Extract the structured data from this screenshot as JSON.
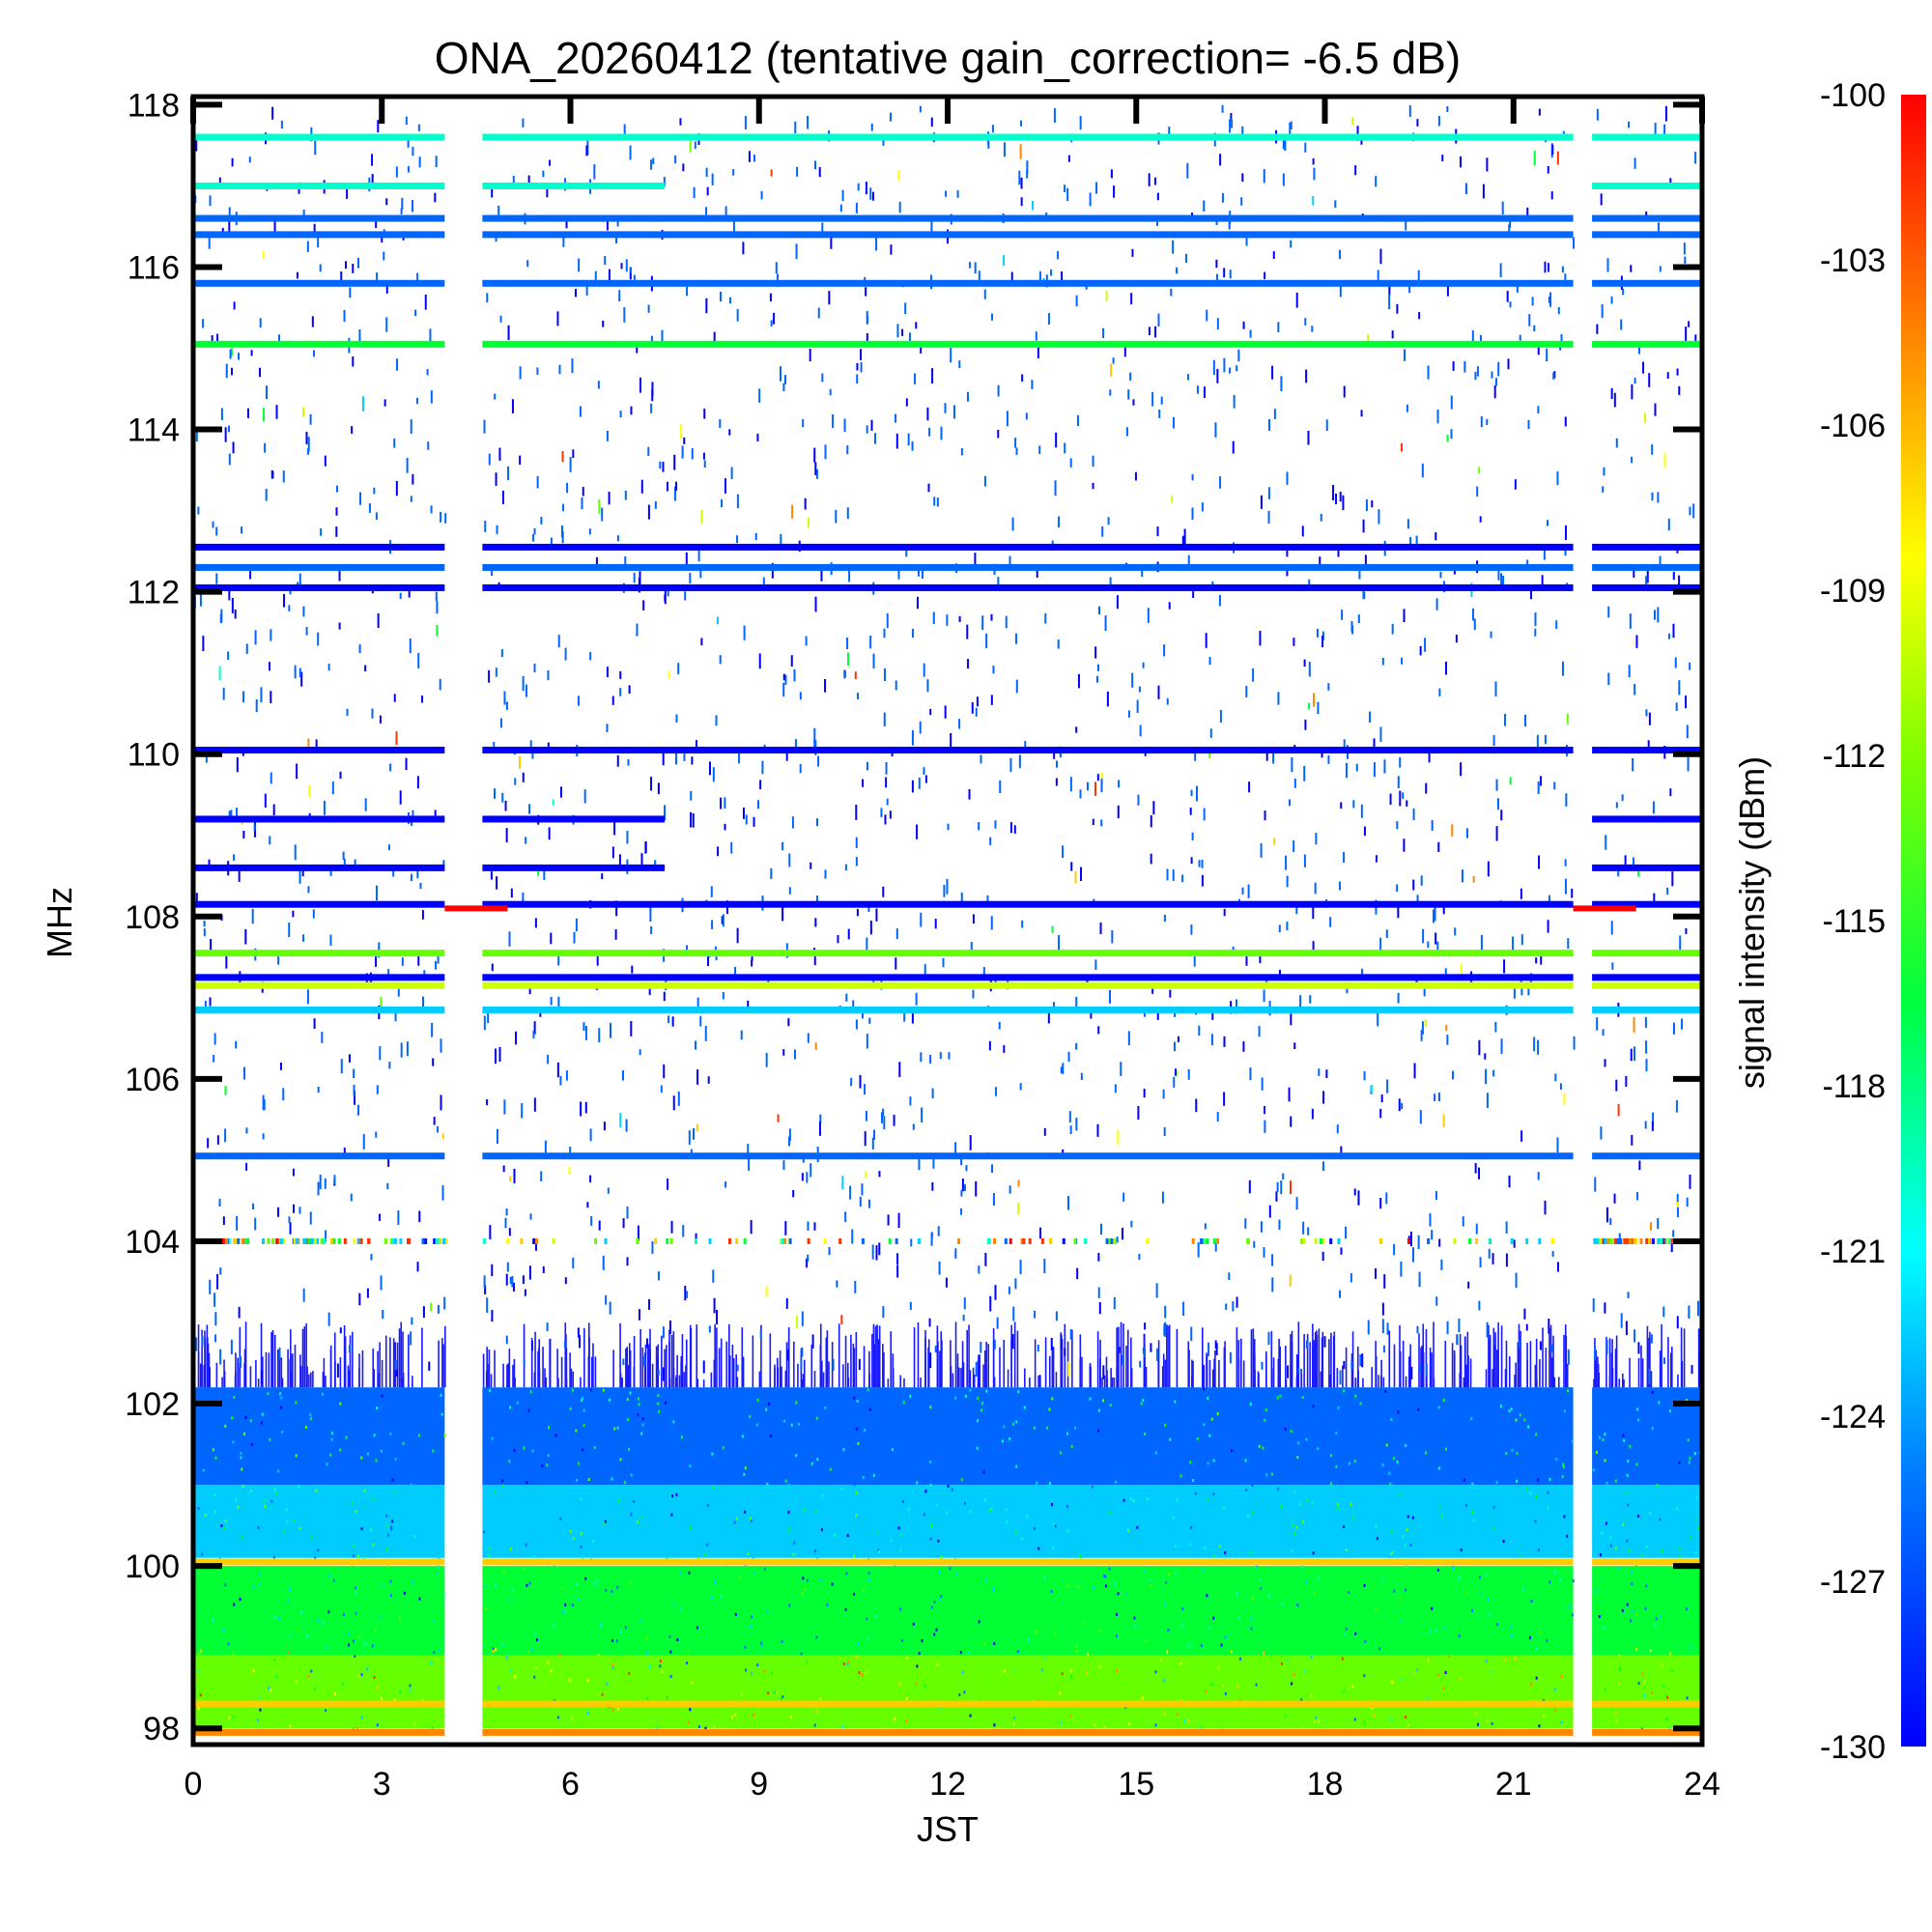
{
  "chart_data": {
    "type": "heatmap",
    "title": "ONA_20260412 (tentative gain_correction= -6.5 dB)",
    "xlabel": "JST",
    "ylabel": "MHz",
    "colorbar_label": "signal intensity (dBm)",
    "xlim": [
      0,
      24
    ],
    "ylim": [
      97.8,
      118.1
    ],
    "xticks": [
      "0",
      "3",
      "6",
      "9",
      "12",
      "15",
      "18",
      "21",
      "24"
    ],
    "yticks": [
      "98",
      "100",
      "102",
      "104",
      "106",
      "108",
      "110",
      "112",
      "114",
      "116",
      "118"
    ],
    "colorbar_range": [
      -130,
      -100
    ],
    "colorbar_ticks": [
      "-100",
      "-103",
      "-106",
      "-109",
      "-112",
      "-115",
      "-118",
      "-121",
      "-124",
      "-127",
      "-130"
    ],
    "colormap": [
      "#0000ff",
      "#0066ff",
      "#00ccff",
      "#00ffcc",
      "#00ff33",
      "#66ff00",
      "#ccff00",
      "#ffff00",
      "#ffcc00",
      "#ff8800",
      "#ff3300",
      "#ff0000"
    ],
    "data_gaps_hours": [
      [
        4.0,
        4.6
      ],
      [
        21.95,
        22.25
      ]
    ],
    "marker_108_hours": [
      [
        4.0,
        5.0
      ],
      [
        21.95,
        22.95
      ]
    ],
    "bands": [
      {
        "freq": 117.6,
        "intensity": -123,
        "coverage": "full"
      },
      {
        "freq": 117.0,
        "intensity": -122,
        "coverage": "partial"
      },
      {
        "freq": 116.6,
        "intensity": -128,
        "coverage": "full"
      },
      {
        "freq": 116.4,
        "intensity": -128,
        "coverage": "full"
      },
      {
        "freq": 115.8,
        "intensity": -128,
        "coverage": "full"
      },
      {
        "freq": 115.05,
        "intensity": -119,
        "coverage": "full"
      },
      {
        "freq": 112.55,
        "intensity": -129,
        "coverage": "full"
      },
      {
        "freq": 112.3,
        "intensity": -128,
        "coverage": "full"
      },
      {
        "freq": 112.05,
        "intensity": -129,
        "coverage": "full"
      },
      {
        "freq": 110.05,
        "intensity": -129,
        "coverage": "full"
      },
      {
        "freq": 109.2,
        "intensity": -129,
        "coverage": "partial"
      },
      {
        "freq": 108.6,
        "intensity": -129,
        "coverage": "partial"
      },
      {
        "freq": 108.15,
        "intensity": -129,
        "coverage": "full"
      },
      {
        "freq": 107.55,
        "intensity": -117,
        "coverage": "full"
      },
      {
        "freq": 107.25,
        "intensity": -129,
        "coverage": "full"
      },
      {
        "freq": 107.15,
        "intensity": -115,
        "coverage": "full"
      },
      {
        "freq": 106.85,
        "intensity": -124,
        "coverage": "full"
      },
      {
        "freq": 105.05,
        "intensity": -127,
        "coverage": "full"
      },
      {
        "freq": 104.0,
        "intensity": -110,
        "coverage": "sparse"
      },
      {
        "freq": 100.05,
        "intensity": -108,
        "coverage": "full"
      },
      {
        "freq": 98.3,
        "intensity": -108,
        "coverage": "full"
      },
      {
        "freq": 97.95,
        "intensity": -105,
        "coverage": "full"
      }
    ],
    "noise_floor": [
      {
        "from": 101.0,
        "to": 102.2,
        "intensity": -128
      },
      {
        "from": 100.1,
        "to": 101.0,
        "intensity": -125
      },
      {
        "from": 98.9,
        "to": 100.0,
        "intensity": -119
      },
      {
        "from": 98.0,
        "to": 98.9,
        "intensity": -117
      }
    ]
  }
}
